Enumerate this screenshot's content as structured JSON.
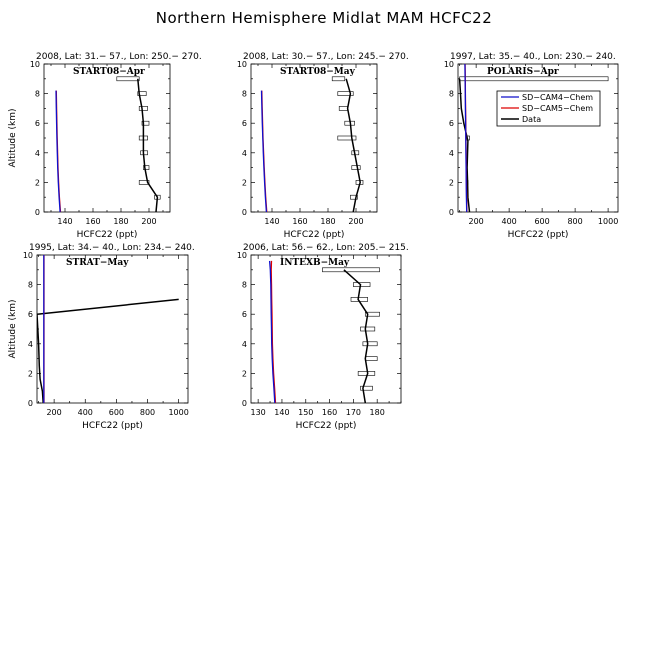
{
  "figure": {
    "title": "Northern Hemisphere Midlat MAM HCFC22"
  },
  "colors": {
    "cam4": "#1010cc",
    "cam5": "#dd0000",
    "data": "#000000"
  },
  "legend": {
    "entries": [
      "SD−CAM4−Chem",
      "SD−CAM5−Chem",
      "Data"
    ]
  },
  "chart_data": [
    {
      "type": "line",
      "title": "2008, Lat:  31.− 57., Lon: 250.− 270.",
      "label": "START08−Apr",
      "xlabel": "HCFC22 (ppt)",
      "ylabel": "Altitude (km)",
      "xlim": [
        125,
        215
      ],
      "ylim": [
        0,
        10
      ],
      "xticks": [
        140,
        160,
        180,
        200
      ],
      "yticks": [
        0,
        2,
        4,
        6,
        8,
        10
      ],
      "series": [
        {
          "name": "SD−CAM4−Chem",
          "x": [
            136.5,
            135.8,
            135.2,
            134.8,
            134.5,
            134.2,
            134.0,
            133.8,
            133.6
          ],
          "y": [
            0,
            1,
            2,
            3,
            4,
            5,
            6,
            7,
            8.2
          ]
        },
        {
          "name": "SD−CAM5−Chem",
          "x": [
            136.8,
            136.0,
            135.4,
            135.0,
            134.7,
            134.4,
            134.2,
            134.0,
            133.8
          ],
          "y": [
            0,
            1,
            2,
            3,
            4,
            5,
            6,
            7,
            8.2
          ]
        },
        {
          "name": "Data",
          "x": [
            205,
            206,
            199,
            197,
            196,
            196,
            196,
            195,
            193,
            192
          ],
          "y": [
            0,
            1,
            2,
            3,
            4,
            5,
            6,
            7,
            8,
            9
          ]
        }
      ],
      "errorbars": [
        [
          204,
          208,
          1
        ],
        [
          193,
          200,
          2
        ],
        [
          196,
          200,
          3
        ],
        [
          194,
          199,
          4
        ],
        [
          193,
          199,
          5
        ],
        [
          195,
          200,
          6
        ],
        [
          193,
          199,
          7
        ],
        [
          192,
          198,
          8
        ],
        [
          177,
          193,
          9
        ]
      ]
    },
    {
      "type": "line",
      "title": "2008, Lat:  30.− 57., Lon: 245.− 270.",
      "label": "START08−May",
      "xlabel": "HCFC22 (ppt)",
      "ylabel": "",
      "xlim": [
        125,
        215
      ],
      "ylim": [
        0,
        10
      ],
      "xticks": [
        140,
        160,
        180,
        200
      ],
      "yticks": [
        0,
        2,
        4,
        6,
        8,
        10
      ],
      "series": [
        {
          "name": "SD−CAM4−Chem",
          "x": [
            136.0,
            135.3,
            134.7,
            134.2,
            133.8,
            133.4,
            133.1,
            132.8,
            132.5
          ],
          "y": [
            0,
            1,
            2,
            3,
            4,
            5,
            6,
            7,
            8.2
          ]
        },
        {
          "name": "SD−CAM5−Chem",
          "x": [
            136.3,
            135.5,
            134.9,
            134.4,
            134.0,
            133.6,
            133.3,
            133.0,
            132.7
          ],
          "y": [
            0,
            1,
            2,
            3,
            4,
            5,
            6,
            7,
            8.2
          ]
        },
        {
          "name": "Data",
          "x": [
            198,
            200,
            203,
            201,
            199,
            197,
            196,
            194,
            196,
            193
          ],
          "y": [
            0,
            1,
            2,
            3,
            4,
            5,
            6,
            7,
            8,
            9
          ]
        }
      ],
      "errorbars": [
        [
          196,
          201,
          1
        ],
        [
          200,
          205,
          2
        ],
        [
          197,
          203,
          3
        ],
        [
          197,
          202,
          4
        ],
        [
          187,
          200,
          5
        ],
        [
          192,
          199,
          6
        ],
        [
          188,
          194,
          7
        ],
        [
          187,
          198,
          8
        ],
        [
          183,
          192,
          9
        ]
      ]
    },
    {
      "type": "line",
      "title": "1997, Lat: 35.− 40., Lon: 230.− 240.",
      "label": "POLARIS−Apr",
      "xlabel": "HCFC22 (ppt)",
      "ylabel": "",
      "xlim": [
        90,
        1060
      ],
      "ylim": [
        0,
        10
      ],
      "xticks": [
        200,
        400,
        600,
        800,
        1000
      ],
      "yticks": [
        0,
        2,
        4,
        6,
        8,
        10
      ],
      "series": [
        {
          "name": "SD−CAM4−Chem",
          "x": [
            143,
            141,
            140,
            139,
            138,
            137,
            136,
            135,
            134,
            133,
            132
          ],
          "y": [
            0,
            1,
            2,
            3,
            4,
            5,
            6,
            7,
            8,
            9,
            10
          ]
        },
        {
          "name": "SD−CAM5−Chem",
          "x": [
            144,
            142,
            141,
            140,
            139,
            138,
            137,
            136,
            135,
            134,
            133
          ],
          "y": [
            0,
            1,
            2,
            3,
            4,
            5,
            6,
            7,
            8,
            9,
            10
          ]
        },
        {
          "name": "Data",
          "x": [
            160,
            150,
            148,
            145,
            150,
            125,
            110,
            105,
            100
          ],
          "y": [
            0,
            1,
            2,
            3,
            4.8,
            6,
            7,
            8,
            9
          ]
        }
      ],
      "errorbars": [
        [
          140,
          150,
          2
        ],
        [
          140,
          160,
          5
        ],
        [
          100,
          1000,
          9
        ]
      ]
    },
    {
      "type": "line",
      "title": "1995, Lat: 34.− 40., Lon: 234.− 240.",
      "label": "STRAT−May",
      "xlabel": "HCFC22 (ppt)",
      "ylabel": "Altitude (km)",
      "xlim": [
        90,
        1060
      ],
      "ylim": [
        0,
        10
      ],
      "xticks": [
        200,
        400,
        600,
        800,
        1000
      ],
      "yticks": [
        0,
        2,
        4,
        6,
        8,
        10
      ],
      "series": [
        {
          "name": "SD−CAM4−Chem",
          "x": [
            134,
            134,
            134,
            134,
            134,
            134,
            134,
            134,
            134,
            134,
            134
          ],
          "y": [
            0,
            1,
            2,
            3,
            4,
            5,
            6,
            7,
            8,
            9,
            10
          ]
        },
        {
          "name": "SD−CAM5−Chem",
          "x": [
            135,
            135,
            135,
            135,
            135,
            135,
            135,
            135,
            135,
            135,
            135
          ],
          "y": [
            0,
            1,
            2,
            3,
            4,
            5,
            6,
            7,
            8,
            9,
            10
          ]
        },
        {
          "name": "Data",
          "x": [
            130,
            125,
            110,
            105,
            100,
            95,
            90,
            1000
          ],
          "y": [
            0,
            0.8,
            1.6,
            2.5,
            4,
            5,
            6,
            7
          ]
        }
      ],
      "errorbars": []
    },
    {
      "type": "line",
      "title": "2006, Lat: 56.− 62., Lon: 205.− 215.",
      "label": "INTEXB−May",
      "xlabel": "HCFC22 (ppt)",
      "ylabel": "",
      "xlim": [
        127,
        190
      ],
      "ylim": [
        0,
        10
      ],
      "xticks": [
        130,
        140,
        150,
        160,
        170,
        180
      ],
      "yticks": [
        0,
        2,
        4,
        6,
        8,
        10
      ],
      "series": [
        {
          "name": "SD−CAM4−Chem",
          "x": [
            137.0,
            136.6,
            136.2,
            135.9,
            135.7,
            135.6,
            135.5,
            135.4,
            135.3,
            135.1,
            134.8
          ],
          "y": [
            0,
            1,
            2,
            3,
            4,
            5,
            6,
            7,
            8,
            9,
            9.6
          ]
        },
        {
          "name": "SD−CAM5−Chem",
          "x": [
            137.3,
            136.9,
            136.5,
            136.2,
            136.0,
            135.9,
            135.8,
            135.7,
            135.6,
            135.5,
            135.6
          ],
          "y": [
            0,
            1,
            2,
            3,
            4,
            5,
            6,
            7,
            8,
            9,
            9.6
          ]
        },
        {
          "name": "Data",
          "x": [
            175,
            174,
            176,
            175,
            176,
            175,
            176,
            172,
            173,
            166
          ],
          "y": [
            0,
            1,
            2,
            3,
            4,
            5,
            6,
            7,
            8,
            9
          ]
        }
      ],
      "errorbars": [
        [
          173,
          178,
          1
        ],
        [
          172,
          179,
          2
        ],
        [
          175,
          180,
          3
        ],
        [
          174,
          180,
          4
        ],
        [
          173,
          179,
          5
        ],
        [
          175,
          181,
          6
        ],
        [
          169,
          176,
          7
        ],
        [
          170,
          177,
          8
        ],
        [
          157,
          181,
          9
        ]
      ]
    }
  ]
}
